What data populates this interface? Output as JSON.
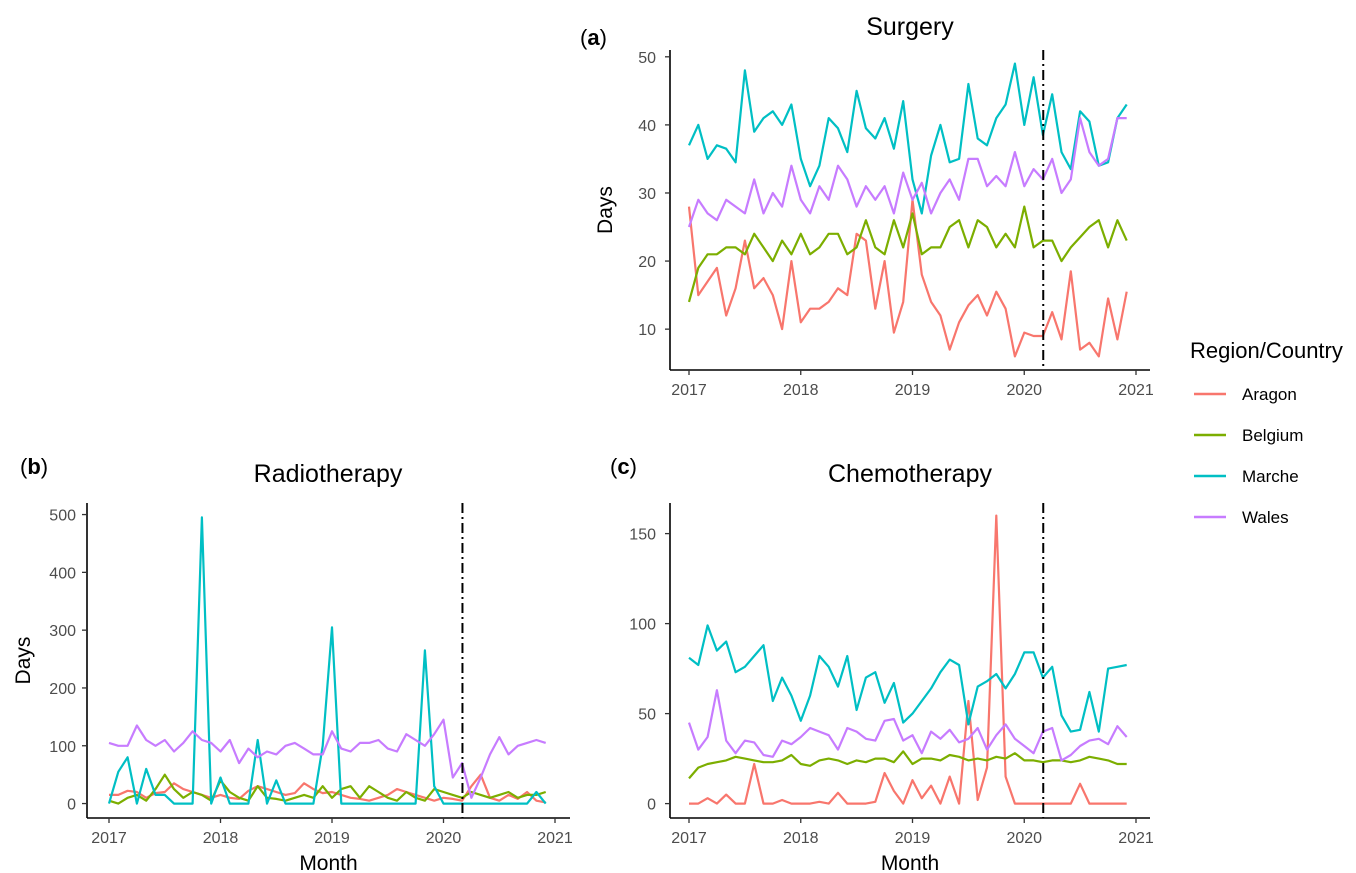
{
  "legend": {
    "title": "Region/Country",
    "items": [
      {
        "name": "Aragon",
        "color": "#F8766D"
      },
      {
        "name": "Belgium",
        "color": "#7CAE00"
      },
      {
        "name": "Marche",
        "color": "#00BFC4"
      },
      {
        "name": "Wales",
        "color": "#C77CFF"
      }
    ]
  },
  "chart_data": [
    {
      "panel": "a",
      "type": "line",
      "title": "Surgery",
      "xlabel": "",
      "ylabel": "Days",
      "x_ticks": [
        "2017",
        "2018",
        "2019",
        "2020",
        "2021"
      ],
      "y_ticks": [
        10,
        20,
        30,
        40,
        50
      ],
      "xlim": [
        2017,
        2021
      ],
      "ylim": [
        4,
        51
      ],
      "reference_line_x": 2020.17,
      "series": [
        {
          "name": "Aragon",
          "color": "#F8766D",
          "values": [
            28,
            15,
            17,
            19,
            12,
            16,
            23,
            16,
            17.5,
            15,
            10,
            20,
            11,
            13,
            13,
            14,
            16,
            15,
            24,
            23,
            13,
            20,
            9.5,
            14,
            29,
            18,
            14,
            12,
            7,
            11,
            13.5,
            15,
            12,
            15.5,
            13,
            6,
            9.5,
            9,
            9,
            12.5,
            8.5,
            18.5,
            7,
            8,
            6,
            14.5,
            8.5,
            15.5
          ]
        },
        {
          "name": "Belgium",
          "color": "#7CAE00",
          "values": [
            14,
            19,
            21,
            21,
            22,
            22,
            21,
            24,
            22,
            20,
            23,
            21,
            24,
            21,
            22,
            24,
            24,
            21,
            22,
            26,
            22,
            21,
            26,
            22,
            27,
            21,
            22,
            22,
            25,
            26,
            22,
            26,
            25,
            22,
            24,
            22,
            28,
            22,
            23,
            23,
            20,
            22,
            23.5,
            25,
            26,
            22,
            26,
            23
          ]
        },
        {
          "name": "Marche",
          "color": "#00BFC4",
          "values": [
            37,
            40,
            35,
            37,
            36.5,
            34.5,
            48,
            39,
            41,
            42,
            40,
            43,
            35,
            31,
            34,
            41,
            39.5,
            36,
            45,
            39.5,
            38,
            41,
            36.5,
            43.5,
            32,
            27,
            35.5,
            40,
            34.5,
            35,
            46,
            38,
            37,
            41,
            43,
            49,
            40,
            47,
            38.5,
            44.5,
            36,
            33.5,
            42,
            40.5,
            34,
            34.5,
            41,
            43
          ]
        },
        {
          "name": "Wales",
          "color": "#C77CFF",
          "values": [
            25,
            29,
            27,
            26,
            29,
            28,
            27,
            32,
            27,
            30,
            28,
            34,
            29,
            27,
            31,
            29,
            34,
            32,
            28,
            31,
            29,
            31,
            27,
            33,
            29,
            31.5,
            27,
            30,
            32,
            29,
            35,
            35,
            31,
            32.5,
            31,
            36,
            31,
            33.5,
            32,
            35,
            30,
            32,
            41,
            36,
            34,
            35,
            41,
            41
          ]
        }
      ]
    },
    {
      "panel": "b",
      "type": "line",
      "title": "Radiotherapy",
      "xlabel": "Month",
      "ylabel": "Days",
      "x_ticks": [
        "2017",
        "2018",
        "2019",
        "2020",
        "2021"
      ],
      "y_ticks": [
        0,
        100,
        200,
        300,
        400,
        500
      ],
      "xlim": [
        2017,
        2021
      ],
      "ylim": [
        -25,
        520
      ],
      "reference_line_x": 2020.17,
      "series": [
        {
          "name": "Aragon",
          "color": "#F8766D",
          "values": [
            15,
            15,
            22,
            20,
            10,
            18,
            20,
            35,
            25,
            20,
            15,
            10,
            15,
            10,
            8,
            22,
            30,
            25,
            20,
            15,
            18,
            35,
            25,
            18,
            20,
            15,
            10,
            8,
            5,
            10,
            15,
            25,
            20,
            15,
            10,
            5,
            10,
            8,
            5,
            30,
            50,
            10,
            5,
            15,
            8,
            20,
            5,
            2
          ]
        },
        {
          "name": "Belgium",
          "color": "#7CAE00",
          "values": [
            5,
            0,
            10,
            15,
            5,
            25,
            50,
            25,
            10,
            20,
            15,
            5,
            40,
            20,
            10,
            5,
            30,
            10,
            8,
            5,
            10,
            15,
            10,
            30,
            10,
            25,
            30,
            10,
            30,
            20,
            10,
            5,
            20,
            10,
            5,
            25,
            20,
            15,
            10,
            20,
            15,
            10,
            15,
            20,
            10,
            15,
            15,
            20
          ]
        },
        {
          "name": "Marche",
          "color": "#00BFC4",
          "values": [
            0,
            55,
            80,
            0,
            60,
            15,
            15,
            0,
            0,
            0,
            495,
            0,
            45,
            0,
            0,
            0,
            110,
            0,
            40,
            0,
            0,
            0,
            0,
            100,
            305,
            0,
            0,
            0,
            0,
            0,
            0,
            0,
            0,
            0,
            265,
            30,
            0,
            0,
            0,
            0,
            0,
            0,
            0,
            0,
            0,
            0,
            20,
            0
          ]
        },
        {
          "name": "Wales",
          "color": "#C77CFF",
          "values": [
            105,
            100,
            100,
            135,
            110,
            100,
            110,
            90,
            105,
            125,
            110,
            105,
            90,
            110,
            70,
            95,
            80,
            90,
            85,
            100,
            105,
            95,
            85,
            85,
            125,
            95,
            90,
            105,
            105,
            110,
            95,
            90,
            120,
            110,
            100,
            120,
            145,
            45,
            70,
            10,
            45,
            85,
            115,
            85,
            100,
            105,
            110,
            105
          ]
        }
      ]
    },
    {
      "panel": "c",
      "type": "line",
      "title": "Chemotherapy",
      "xlabel": "Month",
      "ylabel": "",
      "x_ticks": [
        "2017",
        "2018",
        "2019",
        "2020",
        "2021"
      ],
      "y_ticks": [
        0,
        50,
        100,
        150
      ],
      "xlim": [
        2017,
        2021
      ],
      "ylim": [
        -8,
        167
      ],
      "reference_line_x": 2020.17,
      "series": [
        {
          "name": "Aragon",
          "color": "#F8766D",
          "values": [
            0,
            0,
            3,
            0,
            5,
            0,
            0,
            22,
            0,
            0,
            2,
            0,
            0,
            0,
            1,
            0,
            6,
            0,
            0,
            0,
            1,
            17,
            7,
            0,
            13,
            3,
            10,
            0,
            15,
            0,
            57,
            2,
            20,
            160,
            15,
            0,
            0,
            0,
            0,
            0,
            0,
            0,
            11,
            0,
            0,
            0,
            0,
            0
          ]
        },
        {
          "name": "Belgium",
          "color": "#7CAE00",
          "values": [
            14,
            20,
            22,
            23,
            24,
            26,
            25,
            24,
            23,
            23,
            24,
            27,
            22,
            21,
            24,
            25,
            24,
            22,
            24,
            23,
            25,
            25,
            23,
            29,
            22,
            25,
            25,
            24,
            27,
            26,
            24,
            25,
            24,
            26,
            25,
            28,
            24,
            24,
            23,
            24,
            24,
            23,
            24,
            26,
            25,
            24,
            22,
            22
          ]
        },
        {
          "name": "Marche",
          "color": "#00BFC4",
          "values": [
            81,
            77,
            99,
            85,
            90,
            73,
            76,
            82,
            88,
            57,
            70,
            60,
            46,
            60,
            82,
            76,
            65,
            82,
            52,
            70,
            73,
            56,
            67,
            45,
            50,
            57,
            64,
            73,
            80,
            77,
            44,
            65,
            68,
            72,
            64,
            72,
            84,
            84,
            70,
            76,
            49,
            40,
            41,
            62,
            40,
            75,
            76,
            77
          ]
        },
        {
          "name": "Wales",
          "color": "#C77CFF",
          "values": [
            45,
            30,
            37,
            63,
            35,
            28,
            35,
            34,
            27,
            26,
            35,
            33,
            37,
            42,
            40,
            38,
            30,
            42,
            40,
            36,
            35,
            46,
            47,
            35,
            38,
            28,
            40,
            36,
            41,
            34,
            36,
            42,
            30,
            38,
            44,
            36,
            32,
            28,
            40,
            42,
            24,
            27,
            32,
            35,
            36,
            33,
            43,
            37
          ]
        }
      ]
    }
  ]
}
